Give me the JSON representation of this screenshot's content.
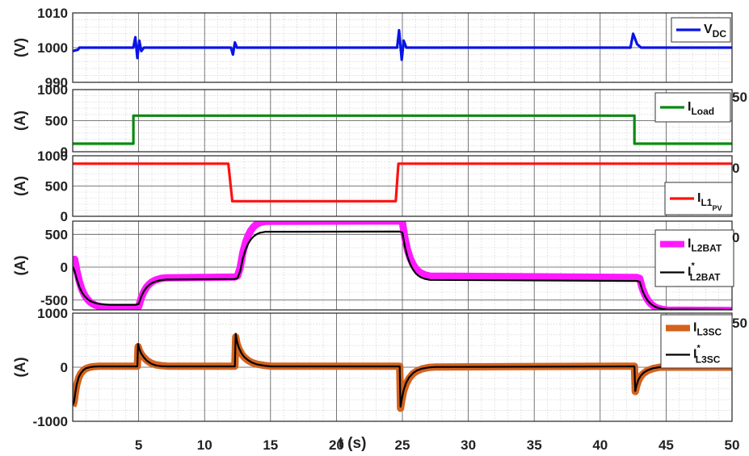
{
  "chart_data": [
    {
      "type": "line",
      "ylabel": "(V)",
      "ylim": [
        990,
        1010
      ],
      "yticks": [
        "990",
        "1000",
        "1010"
      ],
      "grid": true,
      "legend_position": "top-right",
      "series": [
        {
          "name": "V",
          "name_sub": "DC",
          "color": "#0a14e6",
          "x": [
            0,
            0.4,
            0.5,
            4.6,
            4.75,
            4.9,
            5.05,
            5.2,
            5.4,
            12.0,
            12.15,
            12.3,
            12.45,
            24.6,
            24.75,
            24.95,
            25.1,
            25.3,
            42.3,
            42.5,
            42.8,
            43.1,
            50
          ],
          "y": [
            999,
            999.4,
            1000,
            1000,
            1003,
            997,
            1002,
            999,
            1000,
            1000,
            998,
            1001.5,
            1000,
            1000,
            1005,
            996.5,
            1002,
            1000,
            1000,
            1004,
            1001,
            1000,
            1000
          ]
        }
      ]
    },
    {
      "type": "line",
      "ylabel": "(A)",
      "ylim": [
        0,
        1000
      ],
      "yticks": [
        "0",
        "500",
        "1000"
      ],
      "grid": true,
      "legend_position": "top-right",
      "series": [
        {
          "name": "I",
          "name_sub": "Load",
          "color": "#0a8a10",
          "x": [
            0,
            4.6,
            4.6,
            42.6,
            42.6,
            50
          ],
          "y": [
            130,
            130,
            580,
            580,
            130,
            130
          ]
        }
      ]
    },
    {
      "type": "line",
      "ylabel": "(A)",
      "ylim": [
        0,
        1000
      ],
      "yticks": [
        "0",
        "500",
        "1000"
      ],
      "grid": true,
      "legend_position": "bottom-right",
      "series": [
        {
          "name": "I",
          "name_sub": "L1",
          "name_subsub": "PV",
          "color": "#ff1010",
          "x": [
            0,
            11.8,
            12.1,
            24.5,
            24.7,
            50
          ],
          "y": [
            870,
            870,
            250,
            250,
            870,
            870
          ]
        }
      ]
    },
    {
      "type": "line",
      "ylabel": "(A)",
      "ylim": [
        -650,
        700
      ],
      "yticks": [
        "-500",
        "0",
        "500"
      ],
      "grid": true,
      "legend_position": "top-right",
      "series": [
        {
          "name": "I",
          "name_sub": "L2BAT",
          "color": "#ff19ff",
          "x": [
            0.0,
            0.15,
            0.3,
            0.5,
            0.7,
            0.9,
            1.1,
            1.3,
            1.5,
            1.7,
            1.9,
            2.1,
            2.4,
            2.8,
            4.8,
            5.0,
            5.2,
            5.4,
            5.6,
            5.8,
            6.0,
            6.2,
            6.4,
            6.7,
            7.1,
            12.3,
            12.5,
            12.7,
            12.9,
            13.1,
            13.3,
            13.5,
            13.7,
            13.9,
            14.2,
            14.6,
            24.8,
            25.0,
            25.2,
            25.4,
            25.6,
            25.8,
            26.0,
            26.2,
            26.4,
            26.7,
            27.1,
            42.8,
            43.0,
            43.2,
            43.4,
            43.6,
            43.8,
            44.0,
            44.2,
            44.4,
            44.7,
            45.1,
            50.0
          ],
          "y": [
            60,
            120,
            -45,
            -218,
            -339,
            -425,
            -484,
            -526,
            -555,
            -576,
            -590,
            -600,
            -609,
            -614,
            -616,
            -600,
            -465,
            -371,
            -304,
            -258,
            -225,
            -203,
            -187,
            -171,
            -161,
            -150,
            -132,
            -5,
            217,
            372,
            480,
            556,
            609,
            646,
            679,
            697,
            702,
            684,
            433,
            256,
            132,
            45,
            -16,
            -59,
            -88,
            -116,
            -136,
            -157,
            -173,
            -322,
            -426,
            -498,
            -548,
            -584,
            -609,
            -626,
            -642,
            -652,
            -660
          ],
          "width": 9
        },
        {
          "name": "I",
          "name_sub": "L2BAT",
          "name_sup": "*",
          "color": "#000000",
          "x": [
            0.0,
            0.15,
            0.3,
            0.5,
            0.7,
            0.9,
            1.1,
            1.3,
            1.5,
            1.7,
            1.9,
            2.1,
            2.4,
            2.8,
            4.8,
            5.0,
            5.2,
            5.4,
            5.6,
            5.8,
            6.0,
            6.2,
            6.4,
            6.7,
            7.1,
            12.3,
            12.5,
            12.7,
            12.9,
            13.1,
            13.3,
            13.5,
            13.7,
            13.9,
            14.2,
            14.6,
            24.8,
            25.0,
            25.2,
            25.4,
            25.6,
            25.8,
            26.0,
            26.2,
            26.4,
            26.7,
            27.1,
            42.8,
            43.0,
            43.2,
            43.4,
            43.6,
            43.8,
            44.0,
            44.2,
            44.4,
            44.7,
            45.1,
            50.0
          ],
          "y": [
            10,
            -60,
            -178,
            -298,
            -382,
            -440,
            -481,
            -510,
            -530,
            -544,
            -554,
            -561,
            -567,
            -571,
            -572,
            -560,
            -445,
            -365,
            -309,
            -270,
            -243,
            -224,
            -211,
            -197,
            -189,
            -180,
            -165,
            -58,
            131,
            263,
            355,
            419,
            464,
            495,
            523,
            538,
            542,
            527,
            305,
            150,
            41,
            -36,
            -90,
            -128,
            -154,
            -177,
            -194,
            -210,
            -223,
            -353,
            -444,
            -508,
            -552,
            -583,
            -605,
            -621,
            -635,
            -644,
            -650
          ],
          "width": 2.2
        }
      ]
    },
    {
      "type": "line",
      "xlabel": "t (s)",
      "ylabel": "(A)",
      "ylim": [
        -1000,
        1000
      ],
      "yticks": [
        "-1000",
        "0",
        "1000"
      ],
      "xlim": [
        0,
        50
      ],
      "xticks": [
        "5",
        "10",
        "15",
        "20",
        "25",
        "30",
        "35",
        "40",
        "45",
        "50"
      ],
      "grid": true,
      "legend_position": "top-right",
      "series": [
        {
          "name": "I",
          "name_sub": "L3SC",
          "color": "#d4621c",
          "x": [
            0.0,
            0.1,
            0.2,
            0.3,
            0.45,
            0.6,
            0.8,
            1.0,
            1.3,
            1.6,
            2.0,
            2.5,
            3.0,
            4.9,
            4.96,
            5.05,
            5.2,
            5.4,
            5.6,
            5.8,
            6.0,
            6.3,
            6.7,
            7.2,
            12.3,
            12.36,
            12.45,
            12.6,
            12.8,
            13.0,
            13.3,
            13.6,
            14.0,
            14.5,
            15.0,
            24.8,
            24.86,
            24.95,
            25.1,
            25.3,
            25.5,
            25.8,
            26.1,
            26.5,
            27.0,
            27.5,
            42.6,
            42.66,
            42.75,
            42.9,
            43.1,
            43.3,
            43.6,
            44.0,
            44.5,
            50.0
          ],
          "y": [
            -720,
            -650,
            -470,
            -330,
            -200,
            -120,
            -60,
            -25,
            0,
            12,
            18,
            20,
            20,
            20,
            380,
            310,
            240,
            180,
            130,
            95,
            70,
            45,
            30,
            20,
            20,
            560,
            440,
            340,
            250,
            185,
            125,
            85,
            55,
            35,
            20,
            20,
            -760,
            -620,
            -440,
            -300,
            -210,
            -120,
            -70,
            -30,
            -5,
            5,
            20,
            -450,
            -360,
            -250,
            -160,
            -110,
            -60,
            -25,
            0,
            0
          ],
          "width": 9
        },
        {
          "name": "I",
          "name_sub": "L3SC",
          "name_sup": "*",
          "color": "#000000",
          "x": [
            0.0,
            0.1,
            0.2,
            0.3,
            0.45,
            0.6,
            0.8,
            1.0,
            1.3,
            1.6,
            2.0,
            2.5,
            3.0,
            4.9,
            4.96,
            5.05,
            5.2,
            5.4,
            5.6,
            5.8,
            6.0,
            6.3,
            6.7,
            7.2,
            12.3,
            12.36,
            12.45,
            12.6,
            12.8,
            13.0,
            13.3,
            13.6,
            14.0,
            14.5,
            15.0,
            24.8,
            24.86,
            24.95,
            25.1,
            25.3,
            25.5,
            25.8,
            26.1,
            26.5,
            27.0,
            27.5,
            42.6,
            42.66,
            42.75,
            42.9,
            43.1,
            43.3,
            43.6,
            44.0,
            44.5,
            50.0
          ],
          "y": [
            -700,
            -640,
            -460,
            -320,
            -190,
            -115,
            -55,
            -20,
            0,
            10,
            15,
            15,
            15,
            15,
            430,
            340,
            250,
            180,
            125,
            90,
            60,
            35,
            20,
            15,
            15,
            620,
            480,
            360,
            260,
            190,
            130,
            85,
            50,
            30,
            15,
            15,
            -730,
            -600,
            -420,
            -280,
            -190,
            -110,
            -60,
            -25,
            -5,
            5,
            15,
            -440,
            -340,
            -230,
            -150,
            -100,
            -55,
            -20,
            0,
            0
          ],
          "width": 2.2
        }
      ]
    }
  ],
  "ghost_ticks": [
    "50",
    "0",
    "0",
    "50"
  ]
}
